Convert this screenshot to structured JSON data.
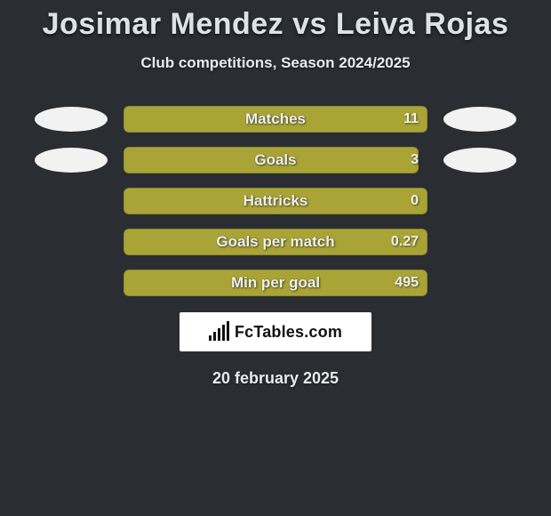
{
  "title": "Josimar Mendez vs Leiva Rojas",
  "subtitle": "Club competitions, Season 2024/2025",
  "date": "20 february 2025",
  "brand": {
    "text": "FcTables.com"
  },
  "colors": {
    "bar_fill": "#aaa437",
    "bar_border": "#8e892e",
    "placeholder": "#f2f2f2",
    "background": "#2a2e33"
  },
  "stats": [
    {
      "label": "Matches",
      "value": "11",
      "fill_pct": 100,
      "show_placeholders": true
    },
    {
      "label": "Goals",
      "value": "3",
      "fill_pct": 97,
      "show_placeholders": true
    },
    {
      "label": "Hattricks",
      "value": "0",
      "fill_pct": 100,
      "show_placeholders": false
    },
    {
      "label": "Goals per match",
      "value": "0.27",
      "fill_pct": 100,
      "show_placeholders": false
    },
    {
      "label": "Min per goal",
      "value": "495",
      "fill_pct": 100,
      "show_placeholders": false
    }
  ]
}
